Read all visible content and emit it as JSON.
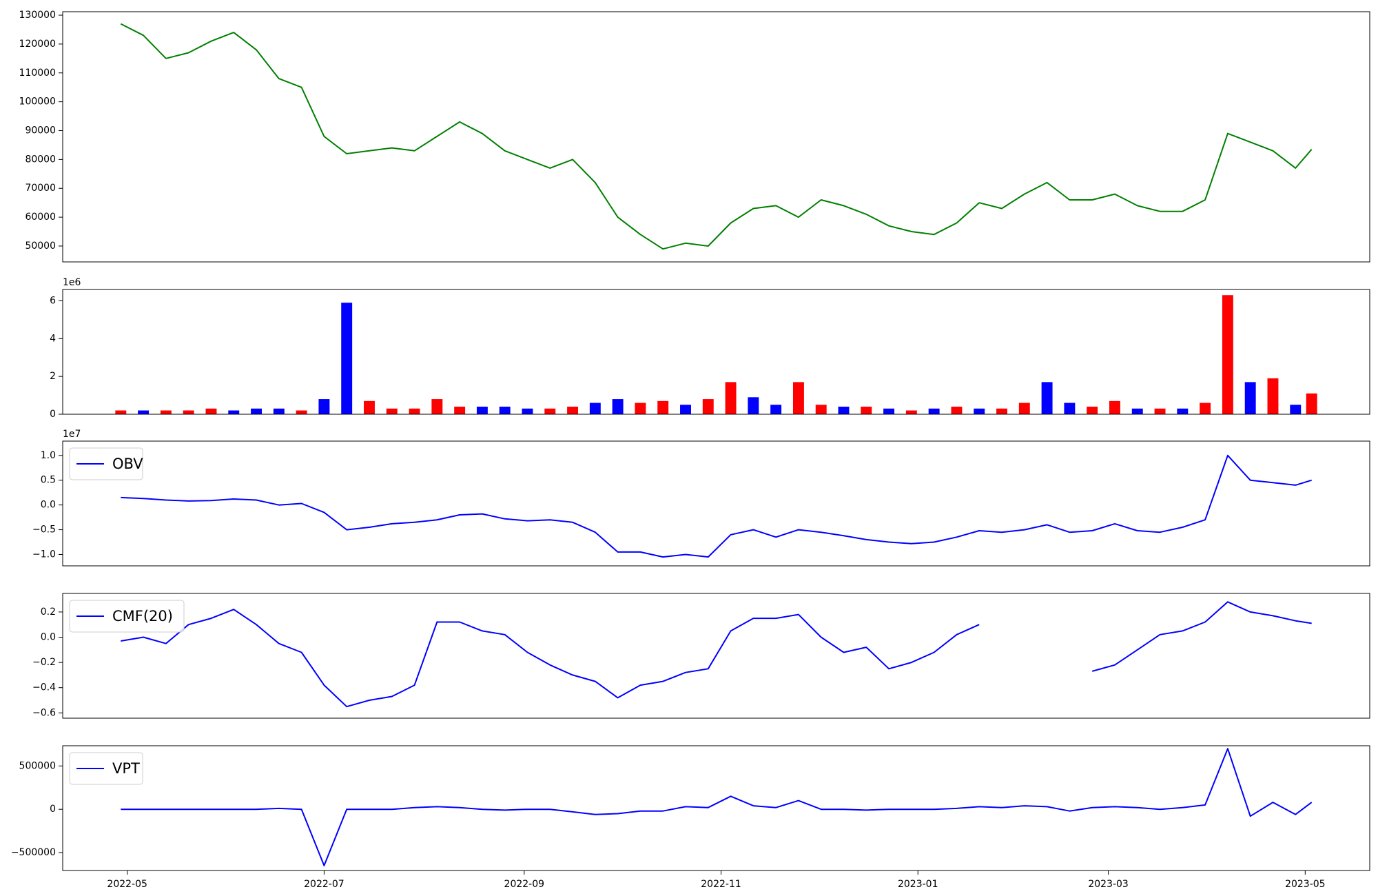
{
  "chart_data": [
    {
      "type": "line",
      "color": "#008000",
      "x": [
        "2022-04-29",
        "2022-05-06",
        "2022-05-13",
        "2022-05-20",
        "2022-05-27",
        "2022-06-03",
        "2022-06-10",
        "2022-06-17",
        "2022-06-24",
        "2022-07-01",
        "2022-07-08",
        "2022-07-15",
        "2022-07-22",
        "2022-07-29",
        "2022-08-05",
        "2022-08-12",
        "2022-08-19",
        "2022-08-26",
        "2022-09-02",
        "2022-09-09",
        "2022-09-16",
        "2022-09-23",
        "2022-09-30",
        "2022-10-07",
        "2022-10-14",
        "2022-10-21",
        "2022-10-28",
        "2022-11-04",
        "2022-11-11",
        "2022-11-18",
        "2022-11-25",
        "2022-12-02",
        "2022-12-09",
        "2022-12-16",
        "2022-12-23",
        "2022-12-30",
        "2023-01-06",
        "2023-01-13",
        "2023-01-20",
        "2023-01-27",
        "2023-02-03",
        "2023-02-10",
        "2023-02-17",
        "2023-02-24",
        "2023-03-03",
        "2023-03-10",
        "2023-03-17",
        "2023-03-24",
        "2023-03-31",
        "2023-04-07",
        "2023-04-14",
        "2023-04-21",
        "2023-04-28",
        "2023-05-03"
      ],
      "values": [
        127000,
        123000,
        115000,
        117000,
        121000,
        124000,
        118000,
        108000,
        105000,
        88000,
        82000,
        83000,
        84000,
        83000,
        88000,
        93000,
        89000,
        83000,
        80000,
        77000,
        80000,
        72000,
        60000,
        54000,
        49000,
        51000,
        50000,
        58000,
        63000,
        64000,
        60000,
        66000,
        64000,
        61000,
        57000,
        55000,
        54000,
        58000,
        65000,
        63000,
        68000,
        72000,
        66000,
        66000,
        68000,
        64000,
        62000,
        62000,
        66000,
        89000,
        86000,
        83000,
        77000,
        83500
      ],
      "xlim": [
        "2022-04-11",
        "2023-05-21"
      ],
      "ylim": [
        44500,
        131200
      ],
      "yticks": [
        50000,
        60000,
        70000,
        80000,
        90000,
        100000,
        110000,
        120000,
        130000
      ]
    },
    {
      "type": "bar",
      "offset_label": "1e6",
      "x": [
        "2022-04-29",
        "2022-05-06",
        "2022-05-13",
        "2022-05-20",
        "2022-05-27",
        "2022-06-03",
        "2022-06-10",
        "2022-06-17",
        "2022-06-24",
        "2022-07-01",
        "2022-07-08",
        "2022-07-15",
        "2022-07-22",
        "2022-07-29",
        "2022-08-05",
        "2022-08-12",
        "2022-08-19",
        "2022-08-26",
        "2022-09-02",
        "2022-09-09",
        "2022-09-16",
        "2022-09-23",
        "2022-09-30",
        "2022-10-07",
        "2022-10-14",
        "2022-10-21",
        "2022-10-28",
        "2022-11-04",
        "2022-11-11",
        "2022-11-18",
        "2022-11-25",
        "2022-12-02",
        "2022-12-09",
        "2022-12-16",
        "2022-12-23",
        "2022-12-30",
        "2023-01-06",
        "2023-01-13",
        "2023-01-20",
        "2023-01-27",
        "2023-02-03",
        "2023-02-10",
        "2023-02-17",
        "2023-02-24",
        "2023-03-03",
        "2023-03-10",
        "2023-03-17",
        "2023-03-24",
        "2023-03-31",
        "2023-04-07",
        "2023-04-14",
        "2023-04-21",
        "2023-04-28",
        "2023-05-03"
      ],
      "values": [
        0.2,
        0.2,
        0.2,
        0.2,
        0.3,
        0.2,
        0.3,
        0.3,
        0.2,
        0.8,
        5.9,
        0.7,
        0.3,
        0.3,
        0.8,
        0.4,
        0.4,
        0.4,
        0.3,
        0.3,
        0.4,
        0.6,
        0.8,
        0.6,
        0.7,
        0.5,
        0.8,
        1.7,
        0.9,
        0.5,
        1.7,
        0.5,
        0.4,
        0.4,
        0.3,
        0.2,
        0.3,
        0.4,
        0.3,
        0.3,
        0.6,
        1.7,
        0.6,
        0.4,
        0.7,
        0.3,
        0.3,
        0.3,
        0.6,
        6.3,
        1.7,
        1.9,
        0.5,
        1.1
      ],
      "colors": [
        "#ff0000",
        "#0000ff",
        "#ff0000",
        "#ff0000",
        "#ff0000",
        "#0000ff",
        "#0000ff",
        "#0000ff",
        "#ff0000",
        "#0000ff",
        "#0000ff",
        "#ff0000",
        "#ff0000",
        "#ff0000",
        "#ff0000",
        "#ff0000",
        "#0000ff",
        "#0000ff",
        "#0000ff",
        "#ff0000",
        "#ff0000",
        "#0000ff",
        "#0000ff",
        "#ff0000",
        "#ff0000",
        "#0000ff",
        "#ff0000",
        "#ff0000",
        "#0000ff",
        "#0000ff",
        "#ff0000",
        "#ff0000",
        "#0000ff",
        "#ff0000",
        "#0000ff",
        "#ff0000",
        "#0000ff",
        "#ff0000",
        "#0000ff",
        "#ff0000",
        "#ff0000",
        "#0000ff",
        "#0000ff",
        "#ff0000",
        "#ff0000",
        "#0000ff",
        "#ff0000",
        "#0000ff",
        "#ff0000",
        "#ff0000",
        "#0000ff",
        "#ff0000",
        "#0000ff",
        "#ff0000"
      ],
      "xlim": [
        "2022-04-11",
        "2023-05-21"
      ],
      "ylim": [
        0,
        6.6
      ],
      "yticks": [
        0,
        2,
        4,
        6
      ]
    },
    {
      "type": "line",
      "offset_label": "1e7",
      "legend": "upper left",
      "x": [
        "2022-04-29",
        "2022-05-06",
        "2022-05-13",
        "2022-05-20",
        "2022-05-27",
        "2022-06-03",
        "2022-06-10",
        "2022-06-17",
        "2022-06-24",
        "2022-07-01",
        "2022-07-08",
        "2022-07-15",
        "2022-07-22",
        "2022-07-29",
        "2022-08-05",
        "2022-08-12",
        "2022-08-19",
        "2022-08-26",
        "2022-09-02",
        "2022-09-09",
        "2022-09-16",
        "2022-09-23",
        "2022-09-30",
        "2022-10-07",
        "2022-10-14",
        "2022-10-21",
        "2022-10-28",
        "2022-11-04",
        "2022-11-11",
        "2022-11-18",
        "2022-11-25",
        "2022-12-02",
        "2022-12-09",
        "2022-12-16",
        "2022-12-23",
        "2022-12-30",
        "2023-01-06",
        "2023-01-13",
        "2023-01-20",
        "2023-01-27",
        "2023-02-03",
        "2023-02-10",
        "2023-02-17",
        "2023-02-24",
        "2023-03-03",
        "2023-03-10",
        "2023-03-17",
        "2023-03-24",
        "2023-03-31",
        "2023-04-07",
        "2023-04-14",
        "2023-04-21",
        "2023-04-28",
        "2023-05-03"
      ],
      "series": [
        {
          "name": "OBV",
          "color": "#0000ff",
          "values": [
            0.15,
            0.13,
            0.1,
            0.08,
            0.09,
            0.12,
            0.1,
            0.0,
            0.03,
            -0.15,
            -0.5,
            -0.45,
            -0.38,
            -0.35,
            -0.3,
            -0.2,
            -0.18,
            -0.28,
            -0.32,
            -0.3,
            -0.35,
            -0.55,
            -0.95,
            -0.95,
            -1.05,
            -1.0,
            -1.05,
            -0.6,
            -0.5,
            -0.65,
            -0.5,
            -0.55,
            -0.62,
            -0.7,
            -0.75,
            -0.78,
            -0.75,
            -0.65,
            -0.52,
            -0.55,
            -0.5,
            -0.4,
            -0.55,
            -0.52,
            -0.38,
            -0.52,
            -0.55,
            -0.45,
            -0.3,
            1.0,
            0.5,
            0.45,
            0.4,
            0.5
          ]
        }
      ],
      "xlim": [
        "2022-04-11",
        "2023-05-21"
      ],
      "ylim": [
        -1.23,
        1.29
      ],
      "yticks": [
        {
          "value": -1.0,
          "label": "−1.0"
        },
        {
          "value": -0.5,
          "label": "−0.5"
        },
        {
          "value": 0.0,
          "label": "0.0"
        },
        {
          "value": 0.5,
          "label": "0.5"
        },
        {
          "value": 1.0,
          "label": "1.0"
        }
      ]
    },
    {
      "type": "line",
      "legend": "upper left",
      "x": [
        "2022-04-29",
        "2022-05-06",
        "2022-05-13",
        "2022-05-20",
        "2022-05-27",
        "2022-06-03",
        "2022-06-10",
        "2022-06-17",
        "2022-06-24",
        "2022-07-01",
        "2022-07-08",
        "2022-07-15",
        "2022-07-22",
        "2022-07-29",
        "2022-08-05",
        "2022-08-12",
        "2022-08-19",
        "2022-08-26",
        "2022-09-02",
        "2022-09-09",
        "2022-09-16",
        "2022-09-23",
        "2022-09-30",
        "2022-10-07",
        "2022-10-14",
        "2022-10-21",
        "2022-10-28",
        "2022-11-04",
        "2022-11-11",
        "2022-11-18",
        "2022-11-25",
        "2022-12-02",
        "2022-12-09",
        "2022-12-16",
        "2022-12-23",
        "2022-12-30",
        "2023-01-06",
        "2023-01-13",
        "2023-01-20",
        "2023-01-27",
        "2023-02-03",
        "2023-02-10",
        "2023-02-17",
        "2023-02-24",
        "2023-03-03",
        "2023-03-10",
        "2023-03-17",
        "2023-03-24",
        "2023-03-31",
        "2023-04-07",
        "2023-04-14",
        "2023-04-21",
        "2023-04-28",
        "2023-05-03"
      ],
      "series": [
        {
          "name": "CMF(20)",
          "color": "#0000ff",
          "values": [
            -0.03,
            0.0,
            -0.05,
            0.1,
            0.15,
            0.22,
            0.1,
            -0.05,
            -0.12,
            -0.38,
            -0.55,
            -0.5,
            -0.47,
            -0.38,
            0.12,
            0.12,
            0.05,
            0.02,
            -0.12,
            -0.22,
            -0.3,
            -0.35,
            -0.48,
            -0.38,
            -0.35,
            -0.28,
            -0.25,
            0.05,
            0.15,
            0.15,
            0.18,
            0.0,
            -0.12,
            -0.08,
            -0.25,
            -0.2,
            -0.12,
            0.02,
            0.1,
            null,
            null,
            null,
            null,
            -0.27,
            -0.22,
            -0.1,
            0.02,
            0.05,
            0.12,
            0.28,
            0.2,
            0.17,
            0.13,
            0.11
          ]
        }
      ],
      "xlim": [
        "2022-04-11",
        "2023-05-21"
      ],
      "ylim": [
        -0.642,
        0.347
      ],
      "yticks": [
        {
          "value": -0.6,
          "label": "−0.6"
        },
        {
          "value": -0.4,
          "label": "−0.4"
        },
        {
          "value": -0.2,
          "label": "−0.2"
        },
        {
          "value": 0.0,
          "label": "0.0"
        },
        {
          "value": 0.2,
          "label": "0.2"
        }
      ]
    },
    {
      "type": "line",
      "legend": "upper left",
      "x": [
        "2022-04-29",
        "2022-05-06",
        "2022-05-13",
        "2022-05-20",
        "2022-05-27",
        "2022-06-03",
        "2022-06-10",
        "2022-06-17",
        "2022-06-24",
        "2022-07-01",
        "2022-07-08",
        "2022-07-15",
        "2022-07-22",
        "2022-07-29",
        "2022-08-05",
        "2022-08-12",
        "2022-08-19",
        "2022-08-26",
        "2022-09-02",
        "2022-09-09",
        "2022-09-16",
        "2022-09-23",
        "2022-09-30",
        "2022-10-07",
        "2022-10-14",
        "2022-10-21",
        "2022-10-28",
        "2022-11-04",
        "2022-11-11",
        "2022-11-18",
        "2022-11-25",
        "2022-12-02",
        "2022-12-09",
        "2022-12-16",
        "2022-12-23",
        "2022-12-30",
        "2023-01-06",
        "2023-01-13",
        "2023-01-20",
        "2023-01-27",
        "2023-02-03",
        "2023-02-10",
        "2023-02-17",
        "2023-02-24",
        "2023-03-03",
        "2023-03-10",
        "2023-03-17",
        "2023-03-24",
        "2023-03-31",
        "2023-04-07",
        "2023-04-14",
        "2023-04-21",
        "2023-04-28",
        "2023-05-03"
      ],
      "series": [
        {
          "name": "VPT",
          "color": "#0000ff",
          "values": [
            0,
            0,
            0,
            0,
            0,
            0,
            0,
            10000,
            0,
            -650000,
            0,
            0,
            0,
            20000,
            30000,
            20000,
            0,
            -10000,
            0,
            0,
            -30000,
            -60000,
            -50000,
            -20000,
            -20000,
            30000,
            20000,
            150000,
            40000,
            20000,
            100000,
            0,
            0,
            -10000,
            0,
            0,
            0,
            10000,
            30000,
            20000,
            40000,
            30000,
            -20000,
            20000,
            30000,
            20000,
            0,
            20000,
            50000,
            700000,
            -80000,
            80000,
            -60000,
            80000
          ]
        }
      ],
      "xlim": [
        "2022-04-11",
        "2023-05-21"
      ],
      "ylim": [
        -706667,
        733333
      ],
      "yticks": [
        {
          "value": -500000,
          "label": "−500000"
        },
        0,
        500000
      ],
      "xticks": [
        {
          "value": "2022-05-01",
          "label": "2022-05"
        },
        {
          "value": "2022-07-01",
          "label": "2022-07"
        },
        {
          "value": "2022-09-01",
          "label": "2022-09"
        },
        {
          "value": "2022-11-01",
          "label": "2022-11"
        },
        {
          "value": "2023-01-01",
          "label": "2023-01"
        },
        {
          "value": "2023-03-01",
          "label": "2023-03"
        },
        {
          "value": "2023-05-01",
          "label": "2023-05"
        }
      ]
    }
  ]
}
